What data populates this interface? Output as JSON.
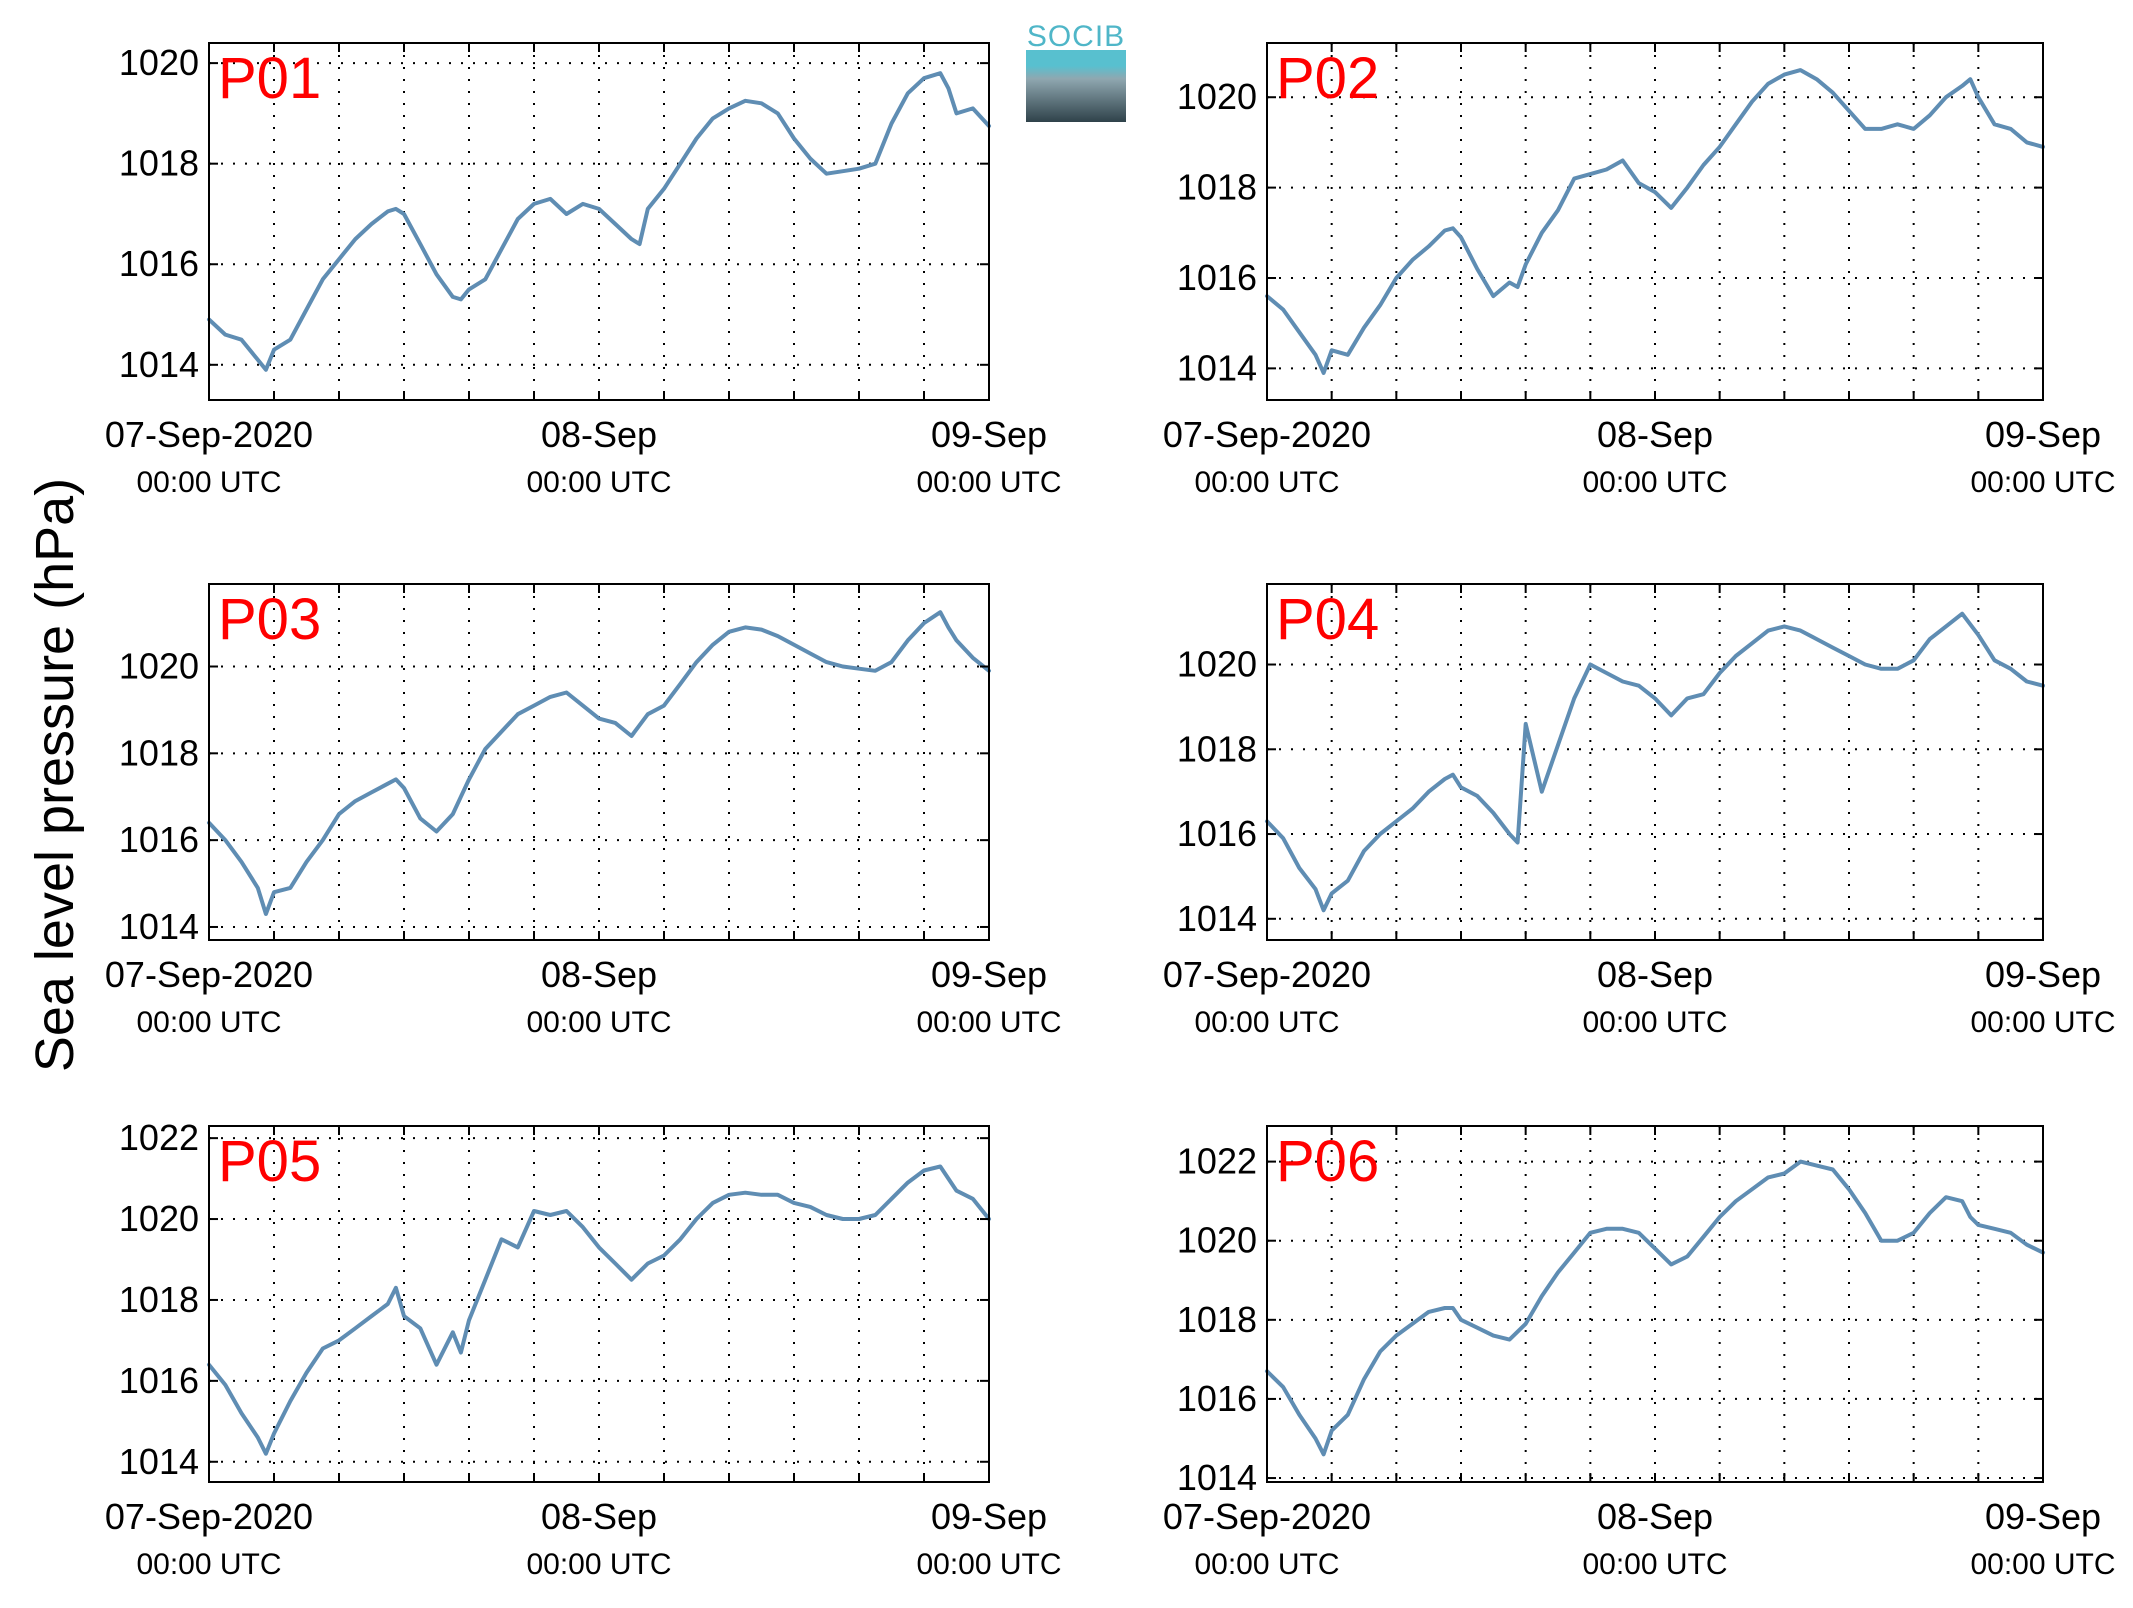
{
  "ylabel": "Sea level pressure (hPa)",
  "logo": {
    "text": "SOCIB"
  },
  "colors": {
    "line": "#5f8db3",
    "panel_label": "#ff0000",
    "axes": "#000000",
    "grid": "#000000"
  },
  "x_tick_labels": {
    "main": [
      "07-Sep-2020",
      "08-Sep",
      "09-Sep"
    ],
    "sub": [
      "00:00 UTC",
      "00:00 UTC",
      "00:00 UTC"
    ]
  },
  "chart_data": [
    {
      "type": "line",
      "label": "P01",
      "xlim": [
        0,
        48
      ],
      "ylim": [
        1013.3,
        1020.4
      ],
      "grid": true,
      "yticks": [
        1014,
        1016,
        1018,
        1020
      ],
      "x": [
        0,
        1,
        2,
        3,
        3.5,
        4,
        5,
        6,
        7,
        8,
        9,
        10,
        11,
        11.5,
        12,
        13,
        14,
        15,
        15.5,
        16,
        17,
        18,
        19,
        20,
        21,
        22,
        23,
        24,
        25,
        26,
        26.5,
        27,
        28,
        29,
        30,
        31,
        32,
        33,
        34,
        35,
        36,
        37,
        38,
        39,
        40,
        41,
        42,
        43,
        44,
        45,
        45.5,
        46,
        47,
        48
      ],
      "y": [
        1014.9,
        1014.6,
        1014.5,
        1014.1,
        1013.9,
        1014.3,
        1014.5,
        1015.1,
        1015.7,
        1016.1,
        1016.5,
        1016.8,
        1017.05,
        1017.1,
        1017.0,
        1016.4,
        1015.8,
        1015.35,
        1015.3,
        1015.5,
        1015.7,
        1016.3,
        1016.9,
        1017.2,
        1017.3,
        1017.0,
        1017.2,
        1017.1,
        1016.8,
        1016.5,
        1016.4,
        1017.1,
        1017.5,
        1018.0,
        1018.5,
        1018.9,
        1019.1,
        1019.25,
        1019.2,
        1019.0,
        1018.5,
        1018.1,
        1017.8,
        1017.85,
        1017.9,
        1018.0,
        1018.8,
        1019.4,
        1019.7,
        1019.8,
        1019.5,
        1019.0,
        1019.1,
        1018.75
      ]
    },
    {
      "type": "line",
      "label": "P02",
      "xlim": [
        0,
        48
      ],
      "ylim": [
        1013.3,
        1021.2
      ],
      "grid": true,
      "yticks": [
        1014,
        1016,
        1018,
        1020
      ],
      "x": [
        0,
        1,
        2,
        3,
        3.5,
        4,
        5,
        6,
        7,
        8,
        9,
        10,
        11,
        11.5,
        12,
        13,
        14,
        15,
        15.5,
        16,
        17,
        18,
        19,
        20,
        21,
        22,
        23,
        24,
        25,
        26,
        27,
        28,
        29,
        30,
        31,
        32,
        33,
        34,
        35,
        36,
        37,
        38,
        39,
        40,
        41,
        42,
        43,
        43.5,
        44,
        45,
        46,
        47,
        48
      ],
      "y": [
        1015.6,
        1015.3,
        1014.8,
        1014.3,
        1013.9,
        1014.4,
        1014.3,
        1014.9,
        1015.4,
        1016.0,
        1016.4,
        1016.7,
        1017.05,
        1017.1,
        1016.9,
        1016.2,
        1015.6,
        1015.9,
        1015.8,
        1016.3,
        1017.0,
        1017.5,
        1018.2,
        1018.3,
        1018.4,
        1018.6,
        1018.1,
        1017.9,
        1017.55,
        1018.0,
        1018.5,
        1018.9,
        1019.4,
        1019.9,
        1020.3,
        1020.5,
        1020.6,
        1020.4,
        1020.1,
        1019.7,
        1019.3,
        1019.3,
        1019.4,
        1019.3,
        1019.6,
        1020.0,
        1020.25,
        1020.4,
        1020.0,
        1019.4,
        1019.3,
        1019.0,
        1018.9
      ]
    },
    {
      "type": "line",
      "label": "P03",
      "xlim": [
        0,
        48
      ],
      "ylim": [
        1013.7,
        1021.9
      ],
      "grid": true,
      "yticks": [
        1014,
        1016,
        1018,
        1020
      ],
      "x": [
        0,
        1,
        2,
        3,
        3.5,
        4,
        5,
        6,
        7,
        8,
        9,
        10,
        11,
        11.5,
        12,
        13,
        14,
        15,
        15.5,
        16,
        17,
        18,
        19,
        20,
        21,
        22,
        23,
        24,
        25,
        26,
        27,
        28,
        29,
        30,
        31,
        32,
        33,
        34,
        35,
        36,
        37,
        38,
        39,
        40,
        41,
        42,
        43,
        44,
        45,
        45.5,
        46,
        47,
        48
      ],
      "y": [
        1016.4,
        1016.0,
        1015.5,
        1014.9,
        1014.3,
        1014.8,
        1014.9,
        1015.5,
        1016.0,
        1016.6,
        1016.9,
        1017.1,
        1017.3,
        1017.4,
        1017.2,
        1016.5,
        1016.2,
        1016.6,
        1017.0,
        1017.4,
        1018.1,
        1018.5,
        1018.9,
        1019.1,
        1019.3,
        1019.4,
        1019.1,
        1018.8,
        1018.7,
        1018.4,
        1018.9,
        1019.1,
        1019.6,
        1020.1,
        1020.5,
        1020.8,
        1020.9,
        1020.85,
        1020.7,
        1020.5,
        1020.3,
        1020.1,
        1020.0,
        1019.95,
        1019.9,
        1020.1,
        1020.6,
        1021.0,
        1021.25,
        1020.9,
        1020.6,
        1020.2,
        1019.9
      ]
    },
    {
      "type": "line",
      "label": "P04",
      "xlim": [
        0,
        48
      ],
      "ylim": [
        1013.5,
        1021.9
      ],
      "grid": true,
      "yticks": [
        1014,
        1016,
        1018,
        1020
      ],
      "x": [
        0,
        1,
        2,
        3,
        3.5,
        4,
        5,
        6,
        7,
        8,
        9,
        10,
        11,
        11.5,
        12,
        13,
        14,
        15,
        15.5,
        16,
        17,
        18,
        19,
        20,
        21,
        22,
        23,
        24,
        25,
        26,
        27,
        28,
        29,
        30,
        31,
        32,
        33,
        34,
        35,
        36,
        37,
        38,
        39,
        40,
        41,
        42,
        43,
        44,
        44.5,
        45,
        46,
        47,
        48
      ],
      "y": [
        1016.3,
        1015.9,
        1015.2,
        1014.7,
        1014.2,
        1014.6,
        1014.9,
        1015.6,
        1016.0,
        1016.3,
        1016.6,
        1017.0,
        1017.3,
        1017.4,
        1017.1,
        1016.9,
        1016.5,
        1016.0,
        1015.8,
        1018.6,
        1017.0,
        1018.1,
        1019.2,
        1020.0,
        1019.8,
        1019.6,
        1019.5,
        1019.2,
        1018.8,
        1019.2,
        1019.3,
        1019.8,
        1020.2,
        1020.5,
        1020.8,
        1020.9,
        1020.8,
        1020.6,
        1020.4,
        1020.2,
        1020.0,
        1019.9,
        1019.9,
        1020.1,
        1020.6,
        1020.9,
        1021.2,
        1020.7,
        1020.4,
        1020.1,
        1019.9,
        1019.6,
        1019.5
      ]
    },
    {
      "type": "line",
      "label": "P05",
      "xlim": [
        0,
        48
      ],
      "ylim": [
        1013.5,
        1022.3
      ],
      "grid": true,
      "yticks": [
        1014,
        1016,
        1018,
        1020,
        1022
      ],
      "x": [
        0,
        1,
        2,
        3,
        3.5,
        4,
        5,
        6,
        7,
        8,
        9,
        10,
        11,
        11.5,
        12,
        13,
        14,
        15,
        15.5,
        16,
        17,
        18,
        19,
        20,
        21,
        22,
        23,
        24,
        25,
        26,
        27,
        28,
        29,
        30,
        31,
        32,
        33,
        34,
        35,
        36,
        37,
        38,
        39,
        40,
        41,
        42,
        43,
        44,
        45,
        45.5,
        46,
        47,
        48
      ],
      "y": [
        1016.4,
        1015.9,
        1015.2,
        1014.6,
        1014.2,
        1014.7,
        1015.5,
        1016.2,
        1016.8,
        1017.0,
        1017.3,
        1017.6,
        1017.9,
        1018.3,
        1017.6,
        1017.3,
        1016.4,
        1017.2,
        1016.7,
        1017.5,
        1018.5,
        1019.5,
        1019.3,
        1020.2,
        1020.1,
        1020.2,
        1019.8,
        1019.3,
        1018.9,
        1018.5,
        1018.9,
        1019.1,
        1019.5,
        1020.0,
        1020.4,
        1020.6,
        1020.65,
        1020.6,
        1020.6,
        1020.4,
        1020.3,
        1020.1,
        1020.0,
        1020.0,
        1020.1,
        1020.5,
        1020.9,
        1021.2,
        1021.3,
        1021.0,
        1020.7,
        1020.5,
        1020.0
      ]
    },
    {
      "type": "line",
      "label": "P06",
      "xlim": [
        0,
        48
      ],
      "ylim": [
        1013.9,
        1022.9
      ],
      "grid": true,
      "yticks": [
        1014,
        1016,
        1018,
        1020,
        1022
      ],
      "x": [
        0,
        1,
        2,
        3,
        3.5,
        4,
        5,
        6,
        7,
        8,
        9,
        10,
        11,
        11.5,
        12,
        13,
        14,
        15,
        15.5,
        16,
        17,
        18,
        19,
        20,
        21,
        22,
        23,
        24,
        25,
        26,
        27,
        28,
        29,
        30,
        31,
        32,
        33,
        34,
        35,
        36,
        37,
        38,
        39,
        40,
        41,
        42,
        43,
        43.5,
        44,
        45,
        46,
        47,
        48
      ],
      "y": [
        1016.7,
        1016.3,
        1015.6,
        1015.0,
        1014.6,
        1015.2,
        1015.6,
        1016.5,
        1017.2,
        1017.6,
        1017.9,
        1018.2,
        1018.3,
        1018.3,
        1018.0,
        1017.8,
        1017.6,
        1017.5,
        1017.7,
        1017.9,
        1018.6,
        1019.2,
        1019.7,
        1020.2,
        1020.3,
        1020.3,
        1020.2,
        1019.8,
        1019.4,
        1019.6,
        1020.1,
        1020.6,
        1021.0,
        1021.3,
        1021.6,
        1021.7,
        1022.0,
        1021.9,
        1021.8,
        1021.3,
        1020.7,
        1020.0,
        1020.0,
        1020.2,
        1020.7,
        1021.1,
        1021.0,
        1020.6,
        1020.4,
        1020.3,
        1020.2,
        1019.9,
        1019.7
      ]
    }
  ]
}
